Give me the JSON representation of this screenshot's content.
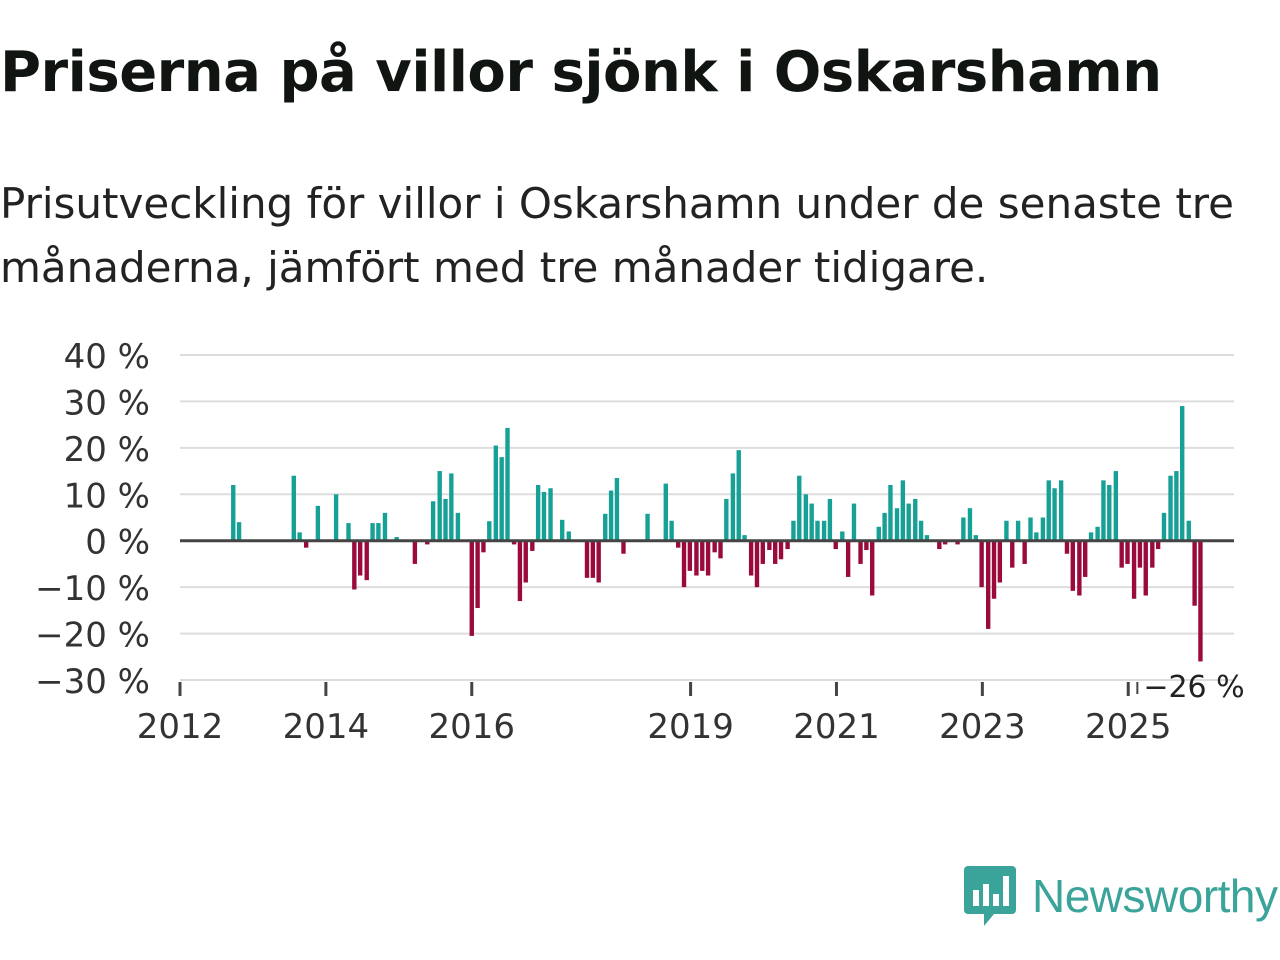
{
  "title": "Priserna på villor sjönk i Oskarshamn",
  "subtitle": "Prisutveckling för villor i Oskarshamn under de senaste tre månaderna, jämfört med tre månader tidigare.",
  "brand": {
    "name": "Newsworthy",
    "color": "#3aa39a"
  },
  "colors": {
    "positive": "#16a096",
    "negative": "#9a0a3c",
    "grid": "#dddddd",
    "zero": "#444444",
    "text": "#333333"
  },
  "chart_data": {
    "type": "bar",
    "title": "Prisutveckling för villor i Oskarshamn",
    "xlabel": "",
    "ylabel": "",
    "unit": "%",
    "ylim": [
      -30,
      40
    ],
    "yticks": [
      40,
      30,
      20,
      10,
      0,
      -10,
      -20,
      -30
    ],
    "ytick_labels": [
      "40 %",
      "30 %",
      "20 %",
      "10 %",
      "0 %",
      "−10 %",
      "−20 %",
      "−30 %"
    ],
    "x_start": 2012,
    "x_end": 2026.45,
    "xticks": [
      2012,
      2014,
      2016,
      2019,
      2021,
      2023,
      2025
    ],
    "xtick_labels": [
      "2012",
      "2014",
      "2016",
      "2019",
      "2021",
      "2023",
      "2025"
    ],
    "bar_width_years": 0.06,
    "annotation": {
      "text": "−26 %",
      "x": 2025.92,
      "value": -26
    },
    "points": [
      {
        "x": 2012.73,
        "value": 12
      },
      {
        "x": 2012.81,
        "value": 4
      },
      {
        "x": 2013.56,
        "value": 14
      },
      {
        "x": 2013.64,
        "value": 1.8
      },
      {
        "x": 2013.73,
        "value": -1.5
      },
      {
        "x": 2013.89,
        "value": 7.5
      },
      {
        "x": 2014.14,
        "value": 10
      },
      {
        "x": 2014.31,
        "value": 3.8
      },
      {
        "x": 2014.39,
        "value": -10.5
      },
      {
        "x": 2014.47,
        "value": -7.5
      },
      {
        "x": 2014.56,
        "value": -8.5
      },
      {
        "x": 2014.64,
        "value": 3.8
      },
      {
        "x": 2014.72,
        "value": 3.8
      },
      {
        "x": 2014.81,
        "value": 6
      },
      {
        "x": 2014.97,
        "value": 0.8
      },
      {
        "x": 2015.22,
        "value": -5
      },
      {
        "x": 2015.39,
        "value": -0.8
      },
      {
        "x": 2015.47,
        "value": 8.5
      },
      {
        "x": 2015.56,
        "value": 15
      },
      {
        "x": 2015.64,
        "value": 9
      },
      {
        "x": 2015.72,
        "value": 14.5
      },
      {
        "x": 2015.81,
        "value": 6
      },
      {
        "x": 2016.0,
        "value": -20.5
      },
      {
        "x": 2016.08,
        "value": -14.5
      },
      {
        "x": 2016.16,
        "value": -2.5
      },
      {
        "x": 2016.24,
        "value": 4.2
      },
      {
        "x": 2016.33,
        "value": 20.5
      },
      {
        "x": 2016.41,
        "value": 18
      },
      {
        "x": 2016.49,
        "value": 24.3
      },
      {
        "x": 2016.58,
        "value": -0.8
      },
      {
        "x": 2016.66,
        "value": -13
      },
      {
        "x": 2016.74,
        "value": -9
      },
      {
        "x": 2016.83,
        "value": -2.2
      },
      {
        "x": 2016.91,
        "value": 12
      },
      {
        "x": 2016.99,
        "value": 10.5
      },
      {
        "x": 2017.08,
        "value": 11.3
      },
      {
        "x": 2017.24,
        "value": 4.5
      },
      {
        "x": 2017.33,
        "value": 2
      },
      {
        "x": 2017.58,
        "value": -8
      },
      {
        "x": 2017.66,
        "value": -8
      },
      {
        "x": 2017.74,
        "value": -9
      },
      {
        "x": 2017.83,
        "value": 5.8
      },
      {
        "x": 2017.91,
        "value": 10.8
      },
      {
        "x": 2017.99,
        "value": 13.5
      },
      {
        "x": 2018.08,
        "value": -2.8
      },
      {
        "x": 2018.41,
        "value": 5.8
      },
      {
        "x": 2018.66,
        "value": 12.3
      },
      {
        "x": 2018.74,
        "value": 4.3
      },
      {
        "x": 2018.83,
        "value": -1.5
      },
      {
        "x": 2018.91,
        "value": -10
      },
      {
        "x": 2018.99,
        "value": -6.5
      },
      {
        "x": 2019.08,
        "value": -7.5
      },
      {
        "x": 2019.16,
        "value": -6.5
      },
      {
        "x": 2019.24,
        "value": -7.5
      },
      {
        "x": 2019.33,
        "value": -2.5
      },
      {
        "x": 2019.41,
        "value": -3.8
      },
      {
        "x": 2019.49,
        "value": 9
      },
      {
        "x": 2019.58,
        "value": 14.5
      },
      {
        "x": 2019.66,
        "value": 19.5
      },
      {
        "x": 2019.74,
        "value": 1.2
      },
      {
        "x": 2019.83,
        "value": -7.5
      },
      {
        "x": 2019.91,
        "value": -10
      },
      {
        "x": 2019.99,
        "value": -5
      },
      {
        "x": 2020.08,
        "value": -2
      },
      {
        "x": 2020.16,
        "value": -5
      },
      {
        "x": 2020.24,
        "value": -4
      },
      {
        "x": 2020.33,
        "value": -1.8
      },
      {
        "x": 2020.41,
        "value": 4.3
      },
      {
        "x": 2020.49,
        "value": 14
      },
      {
        "x": 2020.58,
        "value": 10
      },
      {
        "x": 2020.66,
        "value": 8
      },
      {
        "x": 2020.74,
        "value": 4.3
      },
      {
        "x": 2020.83,
        "value": 4.3
      },
      {
        "x": 2020.91,
        "value": 9
      },
      {
        "x": 2020.99,
        "value": -1.8
      },
      {
        "x": 2021.08,
        "value": 2
      },
      {
        "x": 2021.16,
        "value": -7.8
      },
      {
        "x": 2021.24,
        "value": 8
      },
      {
        "x": 2021.33,
        "value": -5
      },
      {
        "x": 2021.41,
        "value": -2
      },
      {
        "x": 2021.49,
        "value": -11.8
      },
      {
        "x": 2021.58,
        "value": 3
      },
      {
        "x": 2021.66,
        "value": 6
      },
      {
        "x": 2021.74,
        "value": 12
      },
      {
        "x": 2021.83,
        "value": 7
      },
      {
        "x": 2021.91,
        "value": 13
      },
      {
        "x": 2021.99,
        "value": 8
      },
      {
        "x": 2022.08,
        "value": 9
      },
      {
        "x": 2022.16,
        "value": 4.3
      },
      {
        "x": 2022.24,
        "value": 1.2
      },
      {
        "x": 2022.41,
        "value": -1.8
      },
      {
        "x": 2022.49,
        "value": -0.8
      },
      {
        "x": 2022.66,
        "value": -0.8
      },
      {
        "x": 2022.74,
        "value": 5
      },
      {
        "x": 2022.83,
        "value": 7
      },
      {
        "x": 2022.91,
        "value": 1.2
      },
      {
        "x": 2022.99,
        "value": -10
      },
      {
        "x": 2023.08,
        "value": -19
      },
      {
        "x": 2023.16,
        "value": -12.5
      },
      {
        "x": 2023.24,
        "value": -9
      },
      {
        "x": 2023.33,
        "value": 4.3
      },
      {
        "x": 2023.41,
        "value": -5.8
      },
      {
        "x": 2023.49,
        "value": 4.3
      },
      {
        "x": 2023.58,
        "value": -5
      },
      {
        "x": 2023.66,
        "value": 5
      },
      {
        "x": 2023.74,
        "value": 1.8
      },
      {
        "x": 2023.83,
        "value": 5
      },
      {
        "x": 2023.91,
        "value": 13
      },
      {
        "x": 2023.99,
        "value": 11.3
      },
      {
        "x": 2024.08,
        "value": 13
      },
      {
        "x": 2024.16,
        "value": -2.8
      },
      {
        "x": 2024.24,
        "value": -10.8
      },
      {
        "x": 2024.33,
        "value": -11.8
      },
      {
        "x": 2024.41,
        "value": -7.8
      },
      {
        "x": 2024.49,
        "value": 1.8
      },
      {
        "x": 2024.58,
        "value": 3
      },
      {
        "x": 2024.66,
        "value": 13
      },
      {
        "x": 2024.74,
        "value": 12
      },
      {
        "x": 2024.83,
        "value": 15
      },
      {
        "x": 2024.91,
        "value": -5.8
      },
      {
        "x": 2024.99,
        "value": -5
      },
      {
        "x": 2025.08,
        "value": -12.5
      },
      {
        "x": 2025.16,
        "value": -5.8
      },
      {
        "x": 2025.24,
        "value": -11.8
      },
      {
        "x": 2025.33,
        "value": -5.8
      },
      {
        "x": 2025.41,
        "value": -1.8
      },
      {
        "x": 2025.49,
        "value": 6
      },
      {
        "x": 2025.58,
        "value": 14
      },
      {
        "x": 2025.66,
        "value": 15
      },
      {
        "x": 2025.74,
        "value": 29
      },
      {
        "x": 2025.83,
        "value": 4.3
      },
      {
        "x": 2025.91,
        "value": -14
      },
      {
        "x": 2025.99,
        "value": -26
      }
    ]
  }
}
